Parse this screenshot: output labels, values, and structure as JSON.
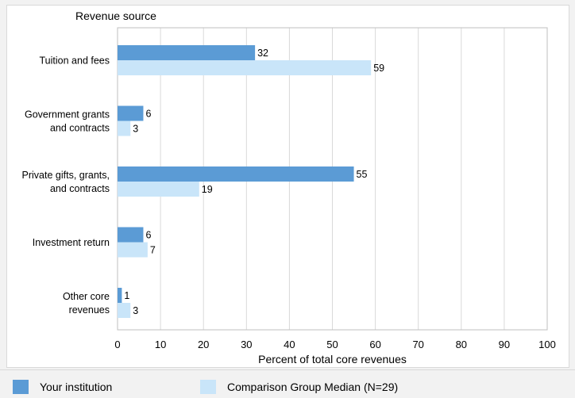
{
  "chart_data": {
    "type": "bar",
    "orientation": "horizontal",
    "y_axis_title": "Revenue source",
    "xlabel": "Percent of total core revenues",
    "xlim": [
      0,
      100
    ],
    "xticks": [
      0,
      10,
      20,
      30,
      40,
      50,
      60,
      70,
      80,
      90,
      100
    ],
    "grid": true,
    "categories": [
      [
        "Tuition and fees"
      ],
      [
        "Government grants",
        "and contracts"
      ],
      [
        "Private gifts, grants,",
        "and contracts"
      ],
      [
        "Investment return"
      ],
      [
        "Other core",
        "revenues"
      ]
    ],
    "series": [
      {
        "name": "Your institution",
        "color": "#5b9bd5",
        "values": [
          32,
          6,
          55,
          6,
          1
        ]
      },
      {
        "name": "Comparison Group Median (N=29)",
        "color": "#c9e5f9",
        "values": [
          59,
          3,
          19,
          7,
          3
        ]
      }
    ],
    "legend_position": "bottom"
  }
}
